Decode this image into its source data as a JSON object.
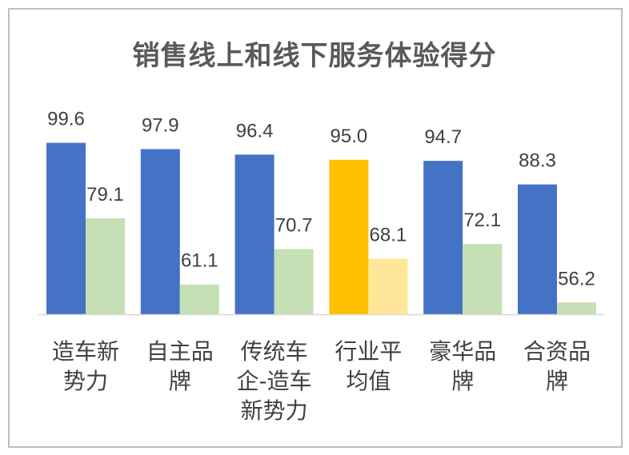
{
  "chart_data": {
    "type": "bar",
    "title": "销售线上和线下服务体验得分",
    "categories": [
      [
        "造车新",
        "势力"
      ],
      [
        "自主品",
        "牌"
      ],
      [
        "传统车",
        "企-造车",
        "新势力"
      ],
      [
        "行业平",
        "均值"
      ],
      [
        "豪华品",
        "牌"
      ],
      [
        "合资品",
        "牌"
      ]
    ],
    "series": [
      {
        "values": [
          99.6,
          97.9,
          96.4,
          95.0,
          94.7,
          88.3
        ],
        "color": "#4472c4",
        "highlight_color": "#ffc000"
      },
      {
        "values": [
          79.1,
          61.1,
          70.7,
          68.1,
          72.1,
          56.2
        ],
        "color": "#c5e0b4",
        "highlight_color": "#ffe699"
      }
    ],
    "highlight_index": 3,
    "value_labels": [
      [
        "99.6",
        "97.9",
        "96.4",
        "95.0",
        "94.7",
        "88.3"
      ],
      [
        "79.1",
        "61.1",
        "70.7",
        "68.1",
        "72.1",
        "56.2"
      ]
    ],
    "ylim": [
      0,
      100
    ],
    "grid": false,
    "legend": "none"
  }
}
